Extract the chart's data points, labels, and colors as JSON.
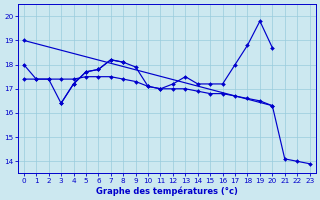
{
  "bg_color": "#cce8f0",
  "line_color": "#0000cc",
  "grid_color": "#99ccdd",
  "xlabel": "Graphe des températures (°c)",
  "xlabel_color": "#0000cc",
  "ylim": [
    13.5,
    20.5
  ],
  "xlim": [
    -0.5,
    23.5
  ],
  "yticks": [
    14,
    15,
    16,
    17,
    18,
    19,
    20
  ],
  "xticks": [
    0,
    1,
    2,
    3,
    4,
    5,
    6,
    7,
    8,
    9,
    10,
    11,
    12,
    13,
    14,
    15,
    16,
    17,
    18,
    19,
    20,
    21,
    22,
    23
  ],
  "series": [
    {
      "x": [
        0,
        1,
        2,
        3,
        4,
        5,
        6,
        7,
        8,
        9,
        10,
        11,
        12,
        13,
        14,
        15,
        16,
        17,
        18,
        19,
        20
      ],
      "y": [
        18.0,
        17.4,
        17.4,
        16.4,
        17.2,
        17.7,
        17.8,
        18.2,
        18.1,
        17.9,
        17.1,
        17.0,
        17.2,
        17.5,
        17.2,
        17.2,
        17.2,
        18.0,
        18.8,
        19.8,
        18.7
      ]
    },
    {
      "x": [
        0,
        20,
        21,
        22,
        23
      ],
      "y": [
        19.0,
        16.3,
        14.1,
        14.0,
        13.9
      ]
    },
    {
      "x": [
        0,
        1,
        2,
        3,
        4,
        5,
        6,
        7,
        8,
        9,
        10,
        11,
        12,
        13,
        14,
        15,
        16,
        17,
        18,
        19,
        20
      ],
      "y": [
        17.4,
        17.4,
        17.4,
        17.4,
        17.4,
        17.5,
        17.5,
        17.5,
        17.4,
        17.3,
        17.1,
        17.0,
        17.0,
        17.0,
        16.9,
        16.8,
        16.8,
        16.7,
        16.6,
        16.5,
        16.3
      ]
    },
    {
      "x": [
        3,
        4,
        5,
        6,
        7,
        8
      ],
      "y": [
        16.4,
        17.2,
        17.7,
        17.8,
        18.2,
        18.1
      ]
    }
  ]
}
